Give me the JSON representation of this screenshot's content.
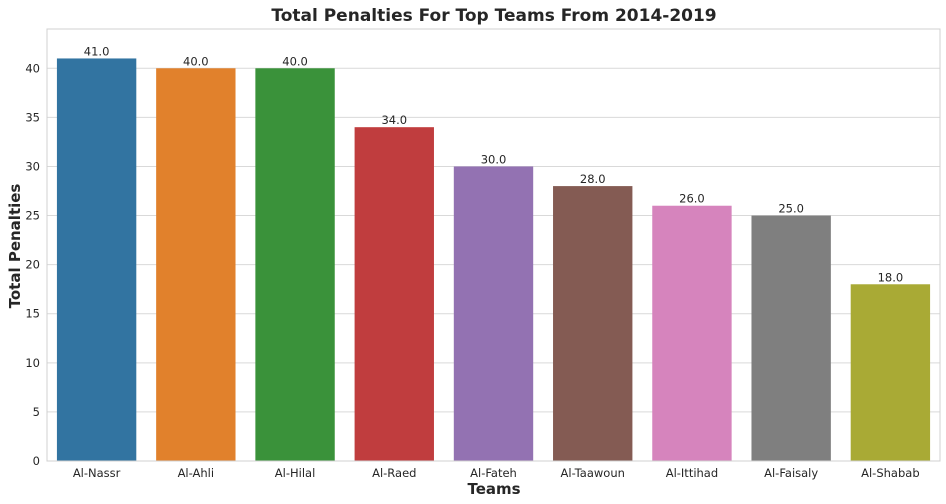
{
  "chart_data": {
    "type": "bar",
    "title": "Total Penalties For Top Teams From 2014-2019",
    "xlabel": "Teams",
    "ylabel": "Total Penalties",
    "categories": [
      "Al-Nassr",
      "Al-Ahli",
      "Al-Hilal",
      "Al-Raed",
      "Al-Fateh",
      "Al-Taawoun",
      "Al-Ittihad",
      "Al-Faisaly",
      "Al-Shabab"
    ],
    "values": [
      41.0,
      40.0,
      40.0,
      34.0,
      30.0,
      28.0,
      26.0,
      25.0,
      18.0
    ],
    "data_labels": [
      "41.0",
      "40.0",
      "40.0",
      "34.0",
      "30.0",
      "28.0",
      "26.0",
      "25.0",
      "18.0"
    ],
    "colors": [
      "#3274a1",
      "#e1812c",
      "#3a923a",
      "#c03d3e",
      "#9372b2",
      "#845b53",
      "#d684bd",
      "#7f7f7f",
      "#a9aa35"
    ],
    "yticks": [
      "0",
      "5",
      "10",
      "15",
      "20",
      "25",
      "30",
      "35",
      "40"
    ],
    "ylim": [
      0,
      44
    ],
    "grid": true,
    "style": {
      "grid_color": "#d9d9d9",
      "frame_color": "#d0d0d0"
    }
  }
}
